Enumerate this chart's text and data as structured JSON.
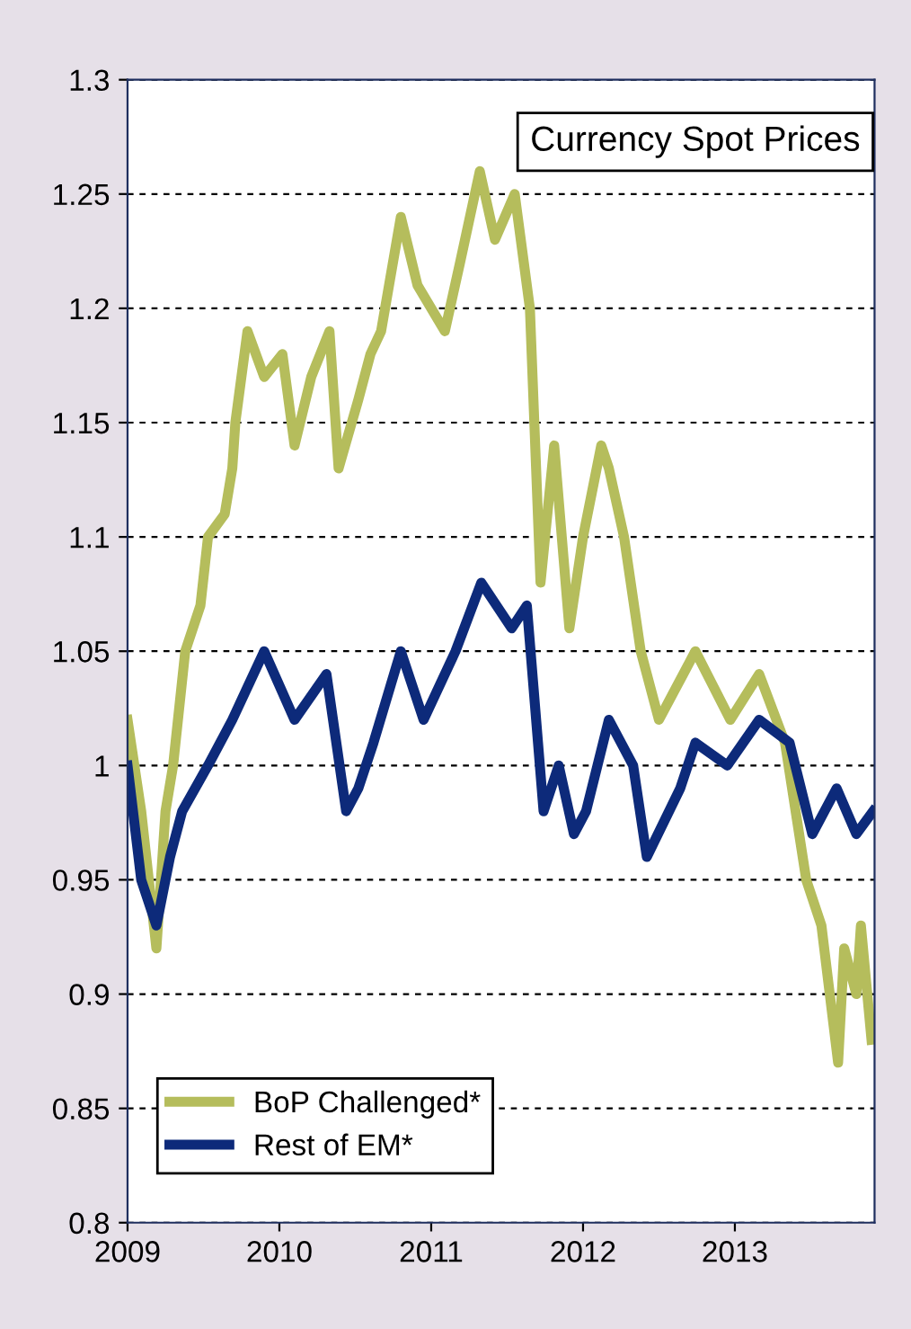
{
  "chart_data": {
    "type": "line",
    "title": "Currency Spot Prices",
    "xlim": [
      2009,
      2013.92
    ],
    "xticks": [
      2009,
      2010,
      2011,
      2012,
      2013
    ],
    "ylim": [
      0.8,
      1.3
    ],
    "yticks": [
      0.8,
      0.85,
      0.9,
      0.95,
      1,
      1.05,
      1.1,
      1.15,
      1.2,
      1.25,
      1.3
    ],
    "grid": "y",
    "legend": "bottom left",
    "line_style": "solid",
    "series": [
      {
        "name": "BoP Challenged*",
        "color": "#b5bd5c",
        "x": [
          2009.0,
          2009.09,
          2009.19,
          2009.25,
          2009.3,
          2009.38,
          2009.48,
          2009.53,
          2009.64,
          2009.69,
          2009.71,
          2009.79,
          2009.9,
          2010.02,
          2010.1,
          2010.21,
          2010.33,
          2010.39,
          2010.52,
          2010.6,
          2010.67,
          2010.8,
          2010.91,
          2011.09,
          2011.19,
          2011.32,
          2011.42,
          2011.55,
          2011.65,
          2011.72,
          2011.81,
          2011.91,
          2012.0,
          2012.12,
          2012.17,
          2012.27,
          2012.38,
          2012.5,
          2012.74,
          2012.97,
          2013.16,
          2013.33,
          2013.47,
          2013.57,
          2013.68,
          2013.72,
          2013.8,
          2013.83,
          2013.9
        ],
        "values": [
          1.02,
          0.98,
          0.92,
          0.98,
          1.0,
          1.05,
          1.07,
          1.1,
          1.11,
          1.13,
          1.15,
          1.19,
          1.17,
          1.18,
          1.14,
          1.17,
          1.19,
          1.13,
          1.16,
          1.18,
          1.19,
          1.24,
          1.21,
          1.19,
          1.22,
          1.26,
          1.23,
          1.25,
          1.2,
          1.08,
          1.14,
          1.06,
          1.1,
          1.14,
          1.13,
          1.1,
          1.05,
          1.02,
          1.05,
          1.02,
          1.04,
          1.01,
          0.95,
          0.93,
          0.87,
          0.92,
          0.9,
          0.93,
          0.88
        ]
      },
      {
        "name": "Rest of EM*",
        "color": "#0d2a7a",
        "x": [
          2009.0,
          2009.09,
          2009.19,
          2009.28,
          2009.36,
          2009.53,
          2009.69,
          2009.9,
          2010.1,
          2010.31,
          2010.44,
          2010.52,
          2010.62,
          2010.8,
          2010.95,
          2011.16,
          2011.33,
          2011.53,
          2011.63,
          2011.74,
          2011.84,
          2011.94,
          2012.02,
          2012.17,
          2012.33,
          2012.42,
          2012.64,
          2012.74,
          2012.95,
          2013.16,
          2013.36,
          2013.51,
          2013.67,
          2013.8,
          2013.91
        ],
        "values": [
          1.0,
          0.95,
          0.93,
          0.96,
          0.98,
          1.0,
          1.02,
          1.05,
          1.02,
          1.04,
          0.98,
          0.99,
          1.01,
          1.05,
          1.02,
          1.05,
          1.08,
          1.06,
          1.07,
          0.98,
          1.0,
          0.97,
          0.98,
          1.02,
          1.0,
          0.96,
          0.99,
          1.01,
          1.0,
          1.02,
          1.01,
          0.97,
          0.99,
          0.97,
          0.98
        ]
      }
    ]
  }
}
